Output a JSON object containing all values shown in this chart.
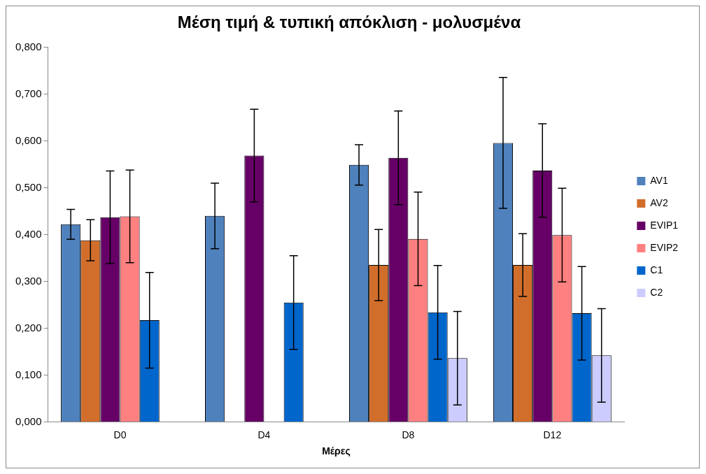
{
  "chart_data": {
    "type": "bar",
    "title": "Μέση τιμή & τυπική απόκλιση - μολυσμένα",
    "xlabel": "Μέρες",
    "categories": [
      "D0",
      "D4",
      "D8",
      "D12"
    ],
    "series": [
      {
        "name": "AV1",
        "color": "#4f81bd",
        "values": [
          0.422,
          0.44,
          0.549,
          0.596
        ],
        "errors": [
          0.032,
          0.07,
          0.043,
          0.14
        ]
      },
      {
        "name": "AV2",
        "color": "#d26e2c",
        "values": [
          0.388,
          null,
          0.335,
          0.335
        ],
        "errors": [
          0.044,
          null,
          0.076,
          0.067
        ]
      },
      {
        "name": "EVIP1",
        "color": "#660066",
        "values": [
          0.437,
          0.569,
          0.564,
          0.537
        ],
        "errors": [
          0.099,
          0.099,
          0.1,
          0.1
        ]
      },
      {
        "name": "EVIP2",
        "color": "#ff8080",
        "values": [
          0.439,
          null,
          0.391,
          0.399
        ],
        "errors": [
          0.099,
          null,
          0.1,
          0.1
        ]
      },
      {
        "name": "C1",
        "color": "#0066cc",
        "values": [
          0.217,
          0.255,
          0.234,
          0.232
        ],
        "errors": [
          0.102,
          0.1,
          0.1,
          0.1
        ]
      },
      {
        "name": "C2",
        "color": "#ccccff",
        "values": [
          null,
          null,
          0.136,
          0.142
        ],
        "errors": [
          null,
          null,
          0.1,
          0.1
        ]
      }
    ],
    "ylim": [
      0,
      0.8
    ],
    "yticks": [
      {
        "value": 0,
        "label": "0,000"
      },
      {
        "value": 0.1,
        "label": "0,100"
      },
      {
        "value": 0.2,
        "label": "0,200"
      },
      {
        "value": 0.3,
        "label": "0,300"
      },
      {
        "value": 0.4,
        "label": "0,400"
      },
      {
        "value": 0.5,
        "label": "0,500"
      },
      {
        "value": 0.6,
        "label": "0,600"
      },
      {
        "value": 0.7,
        "label": "0,700"
      },
      {
        "value": 0.8,
        "label": "0,800"
      }
    ],
    "grid": false,
    "legend": "right"
  }
}
